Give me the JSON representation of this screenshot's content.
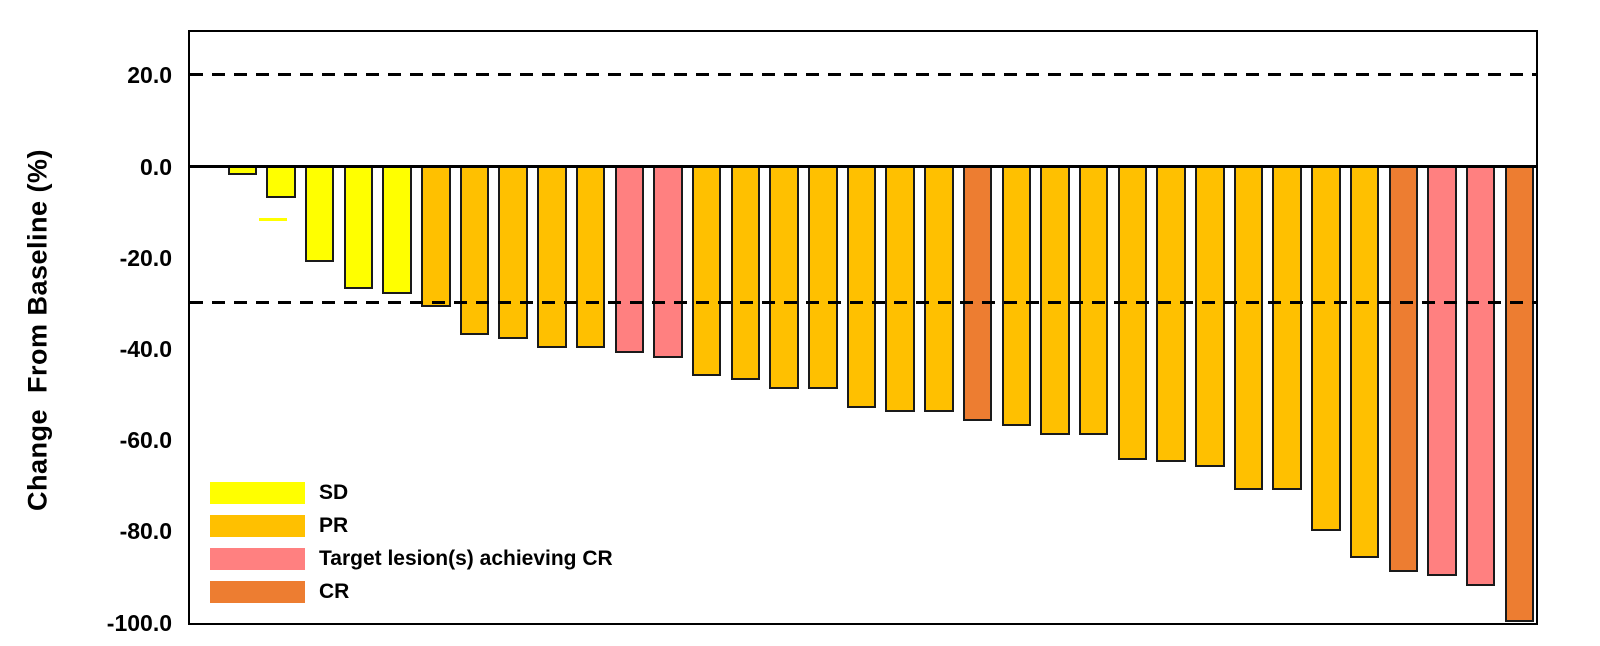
{
  "chart_data": {
    "type": "bar",
    "subtype": "waterfall",
    "title": "",
    "xlabel": "",
    "ylabel": "Change  From Baseline (%)",
    "ylim": [
      30,
      -100
    ],
    "grid": false,
    "yticks": [
      {
        "value": 20,
        "label": "20.0"
      },
      {
        "value": 0,
        "label": "0.0"
      },
      {
        "value": -20,
        "label": "-20.0"
      },
      {
        "value": -40,
        "label": "-40.0"
      },
      {
        "value": -60,
        "label": "-60.0"
      },
      {
        "value": -80,
        "label": "-80.0"
      },
      {
        "value": -100,
        "label": "-100.0"
      }
    ],
    "reference_lines": [
      {
        "value": 20,
        "style": "dashed",
        "color": "#000000"
      },
      {
        "value": 0,
        "style": "solid",
        "color": "#000000"
      },
      {
        "value": -30,
        "style": "dashed",
        "color": "#000000"
      }
    ],
    "categories": {
      "SD": {
        "color": "#FFFF00"
      },
      "PR": {
        "color": "#FFC000"
      },
      "TL-CR": {
        "color": "#FF8080"
      },
      "CR": {
        "color": "#ED7D31"
      }
    },
    "legend": {
      "position": "inside-bottom-left",
      "entries": [
        {
          "category": "SD",
          "label": "SD"
        },
        {
          "category": "PR",
          "label": "PR"
        },
        {
          "category": "TL-CR",
          "label": "Target lesion(s) achieving CR"
        },
        {
          "category": "CR",
          "label": "CR"
        }
      ]
    },
    "bars": [
      {
        "value": -2,
        "category": "SD"
      },
      {
        "value": -7,
        "category": "SD"
      },
      {
        "value": -21,
        "category": "SD"
      },
      {
        "value": -27,
        "category": "SD"
      },
      {
        "value": -28,
        "category": "SD"
      },
      {
        "value": -31,
        "category": "PR"
      },
      {
        "value": -37,
        "category": "PR"
      },
      {
        "value": -38,
        "category": "PR"
      },
      {
        "value": -40,
        "category": "PR"
      },
      {
        "value": -40,
        "category": "PR"
      },
      {
        "value": -41,
        "category": "TL-CR"
      },
      {
        "value": -42,
        "category": "TL-CR"
      },
      {
        "value": -46,
        "category": "PR"
      },
      {
        "value": -47,
        "category": "PR"
      },
      {
        "value": -49,
        "category": "PR"
      },
      {
        "value": -49,
        "category": "PR"
      },
      {
        "value": -53,
        "category": "PR"
      },
      {
        "value": -54,
        "category": "PR"
      },
      {
        "value": -54,
        "category": "PR"
      },
      {
        "value": -56,
        "category": "CR"
      },
      {
        "value": -57,
        "category": "PR"
      },
      {
        "value": -59,
        "category": "PR"
      },
      {
        "value": -59,
        "category": "PR"
      },
      {
        "value": -64.5,
        "category": "PR"
      },
      {
        "value": -65,
        "category": "PR"
      },
      {
        "value": -66,
        "category": "PR"
      },
      {
        "value": -71,
        "category": "PR"
      },
      {
        "value": -71,
        "category": "PR"
      },
      {
        "value": -80,
        "category": "PR"
      },
      {
        "value": -86,
        "category": "PR"
      },
      {
        "value": -89,
        "category": "CR"
      },
      {
        "value": -90,
        "category": "TL-CR"
      },
      {
        "value": -92,
        "category": "TL-CR"
      },
      {
        "value": -100,
        "category": "CR"
      }
    ],
    "annotations": [
      {
        "type": "dash-marker",
        "bar_index": 1,
        "value": -11.3,
        "color": "#FFFF00"
      }
    ]
  }
}
